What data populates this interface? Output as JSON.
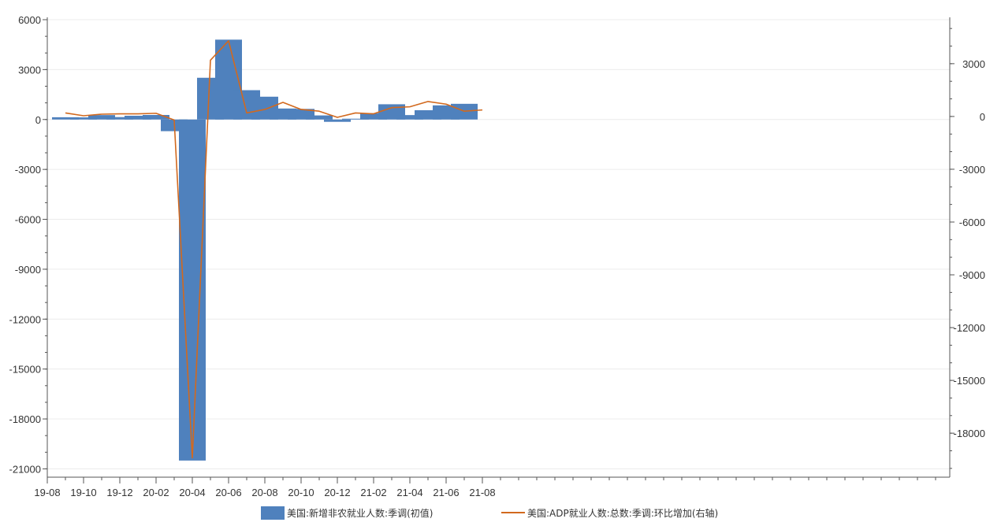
{
  "chart_data": {
    "type": "bar",
    "x_ticks": [
      "19-08",
      "19-10",
      "19-12",
      "20-02",
      "20-04",
      "20-06",
      "20-08",
      "20-10",
      "20-12",
      "21-02",
      "21-04",
      "21-06",
      "21-08"
    ],
    "left_axis": {
      "ticks": [
        6000,
        3000,
        0,
        -3000,
        -6000,
        -9000,
        -12000,
        -15000,
        -18000,
        -21000
      ],
      "range": [
        -21500,
        6000
      ]
    },
    "right_axis": {
      "ticks": [
        3000,
        0,
        -3000,
        -6000,
        -9000,
        -12000,
        -15000,
        -18000
      ],
      "range": [
        -20500,
        5500
      ]
    },
    "grid": true,
    "legend_position": "bottom",
    "series": [
      {
        "name": "美国:新增非农就业人数:季调(初值)",
        "type": "bar",
        "axis": "left",
        "color": "#4f81bd",
        "x": [
          "19-09",
          "19-10",
          "19-11",
          "19-12",
          "20-01",
          "20-02",
          "20-03",
          "20-04",
          "20-05",
          "20-06",
          "20-07",
          "20-08",
          "20-09",
          "20-10",
          "20-11",
          "20-12",
          "21-01",
          "21-02",
          "21-03",
          "21-04",
          "21-05",
          "21-06",
          "21-07"
        ],
        "values": [
          136,
          128,
          266,
          145,
          225,
          273,
          -701,
          -20500,
          2509,
          4800,
          1763,
          1371,
          661,
          638,
          245,
          -140,
          49,
          379,
          916,
          266,
          559,
          850,
          943
        ]
      },
      {
        "name": "美国:ADP就业人数:总数:季调:环比增加(右轴)",
        "type": "line",
        "axis": "right",
        "color": "#d2691e",
        "x": [
          "19-09",
          "19-10",
          "19-11",
          "19-12",
          "20-01",
          "20-02",
          "20-03",
          "20-04",
          "20-05",
          "20-06",
          "20-07",
          "20-08",
          "20-09",
          "20-10",
          "20-11",
          "20-12",
          "21-01",
          "21-02",
          "21-03",
          "21-04",
          "21-05",
          "21-06",
          "21-07",
          "21-08"
        ],
        "values": [
          200,
          40,
          130,
          150,
          150,
          180,
          -200,
          -19400,
          3200,
          4300,
          200,
          400,
          800,
          400,
          300,
          -50,
          200,
          150,
          500,
          550,
          850,
          700,
          300,
          370
        ]
      }
    ]
  }
}
